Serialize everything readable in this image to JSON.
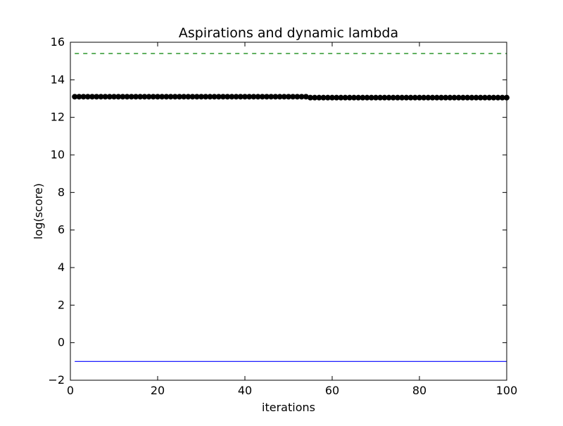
{
  "chart_data": {
    "type": "line",
    "title": "Aspirations and dynamic lambda",
    "xlabel": "iterations",
    "ylabel": "log(score)",
    "xlim": [
      0,
      100
    ],
    "ylim": [
      -2,
      16
    ],
    "x_ticks": [
      0,
      20,
      40,
      60,
      80,
      100
    ],
    "y_ticks": [
      -2,
      0,
      2,
      4,
      6,
      8,
      10,
      12,
      14,
      16
    ],
    "grid": false,
    "series": [
      {
        "style": "dashed-line",
        "color": "#008000",
        "x": [
          1,
          100
        ],
        "y": [
          15.4,
          15.4
        ]
      },
      {
        "style": "markers",
        "color": "#000000",
        "x_start": 1,
        "x_end": 100,
        "change_at": 55,
        "y_before": 13.1,
        "y_after": 13.05
      },
      {
        "style": "solid-line",
        "color": "#0000ff",
        "x": [
          1,
          100
        ],
        "y": [
          -1,
          -1
        ]
      }
    ]
  }
}
